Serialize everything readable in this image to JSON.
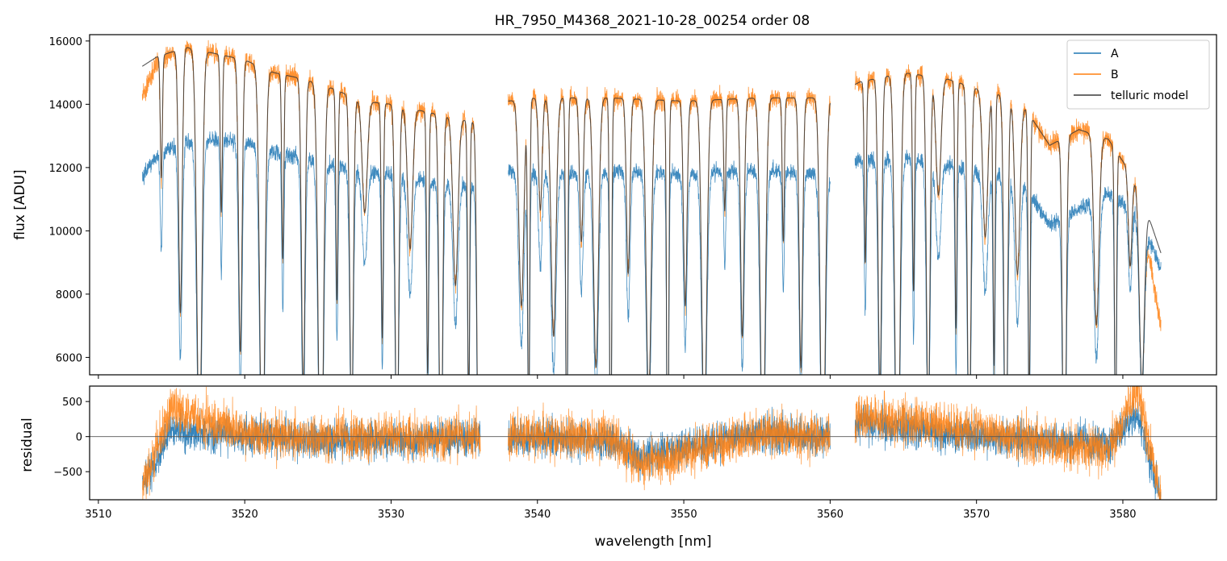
{
  "title": "HR_7950_M4368_2021-10-28_00254  order 08",
  "colors": {
    "A": "#1f77b4",
    "B": "#ff7f0e",
    "model": "#3a3a3a",
    "zero_line": "#555555"
  },
  "legend": {
    "placement": "top-right",
    "entries": [
      "A",
      "B",
      "telluric model"
    ]
  },
  "chart_data": [
    {
      "type": "line",
      "panel": "flux",
      "ylabel": "flux [ADU]",
      "xlim": [
        3509.4,
        3586.4
      ],
      "ylim": [
        5450,
        16200
      ],
      "yticks": [
        6000,
        8000,
        10000,
        12000,
        14000,
        16000
      ],
      "xticks": [
        3510,
        3520,
        3530,
        3540,
        3550,
        3560,
        3570,
        3580
      ],
      "grid": false,
      "series": [
        {
          "name": "A",
          "x": [
            3513.0,
            3514.0,
            3516.0,
            3518.0,
            3520.0,
            3522.0,
            3524.0,
            3526.0,
            3528.0,
            3530.0,
            3532.0,
            3534.0,
            3536.0,
            3538.0,
            3540.0,
            3545.0,
            3550.0,
            3555.0,
            3560.0,
            3562.0,
            3565.0,
            3568.0,
            3570.0,
            3573.0,
            3575.0,
            3577.0,
            3579.0,
            3581.0,
            3582.6
          ],
          "values": [
            11700,
            12400,
            12800,
            12900,
            12800,
            12500,
            12300,
            12100,
            11900,
            11800,
            11600,
            11500,
            11400,
            11900,
            11800,
            11900,
            11800,
            11900,
            11800,
            12200,
            12300,
            12100,
            11900,
            11600,
            10200,
            10700,
            11200,
            10600,
            8800
          ]
        },
        {
          "name": "B",
          "x": [
            3513.0,
            3514.0,
            3516.0,
            3518.0,
            3520.0,
            3522.0,
            3524.0,
            3526.0,
            3528.0,
            3530.0,
            3532.0,
            3534.0,
            3536.0,
            3538.0,
            3540.0,
            3545.0,
            3550.0,
            3555.0,
            3560.0,
            3562.0,
            3565.0,
            3568.0,
            3570.0,
            3573.0,
            3575.0,
            3577.0,
            3579.0,
            3581.0,
            3582.6
          ],
          "values": [
            14200,
            15300,
            15800,
            15600,
            15400,
            15000,
            14800,
            14500,
            14100,
            14000,
            13800,
            13600,
            13400,
            14100,
            14200,
            14200,
            14100,
            14200,
            14200,
            14700,
            15000,
            14800,
            14500,
            14100,
            12700,
            13200,
            12900,
            11500,
            7000
          ]
        },
        {
          "name": "telluric model",
          "x": [
            3513.0,
            3514.0,
            3516.0,
            3518.0,
            3520.0,
            3522.0,
            3524.0,
            3526.0,
            3528.0,
            3530.0,
            3532.0,
            3534.0,
            3536.0,
            3538.0,
            3540.0,
            3545.0,
            3550.0,
            3555.0,
            3560.0,
            3562.0,
            3565.0,
            3568.0,
            3570.0,
            3573.0,
            3575.0,
            3577.0,
            3579.0,
            3581.0,
            3582.6
          ],
          "values": [
            15200,
            15500,
            15800,
            15600,
            15400,
            15000,
            14800,
            14500,
            14100,
            14000,
            13800,
            13600,
            13400,
            14100,
            14200,
            14200,
            14100,
            14200,
            14200,
            14700,
            15000,
            14800,
            14500,
            14100,
            12700,
            13200,
            12900,
            11500,
            9300
          ]
        }
      ]
    },
    {
      "type": "line",
      "panel": "residual",
      "xlabel": "wavelength [nm]",
      "ylabel": "residual",
      "xlim": [
        3509.4,
        3586.4
      ],
      "ylim": [
        -900,
        720
      ],
      "yticks": [
        -500,
        0,
        500
      ],
      "xticks": [
        3510,
        3520,
        3530,
        3540,
        3550,
        3560,
        3570,
        3580
      ],
      "series": [
        {
          "name": "A",
          "x": [
            3513.0,
            3515.0,
            3520.0,
            3525.0,
            3530.0,
            3536.0,
            3538.0,
            3545.0,
            3547.0,
            3555.0,
            3560.0,
            3562.0,
            3570.0,
            3575.0,
            3579.0,
            3581.0,
            3582.6
          ],
          "values": [
            -700,
            100,
            0,
            -50,
            -50,
            0,
            0,
            -50,
            -300,
            50,
            0,
            200,
            0,
            -50,
            -100,
            300,
            -900
          ]
        },
        {
          "name": "B",
          "x": [
            3513.0,
            3515.0,
            3520.0,
            3525.0,
            3530.0,
            3536.0,
            3538.0,
            3545.0,
            3547.0,
            3555.0,
            3560.0,
            3562.0,
            3570.0,
            3575.0,
            3579.0,
            3581.0,
            3582.6
          ],
          "values": [
            -700,
            400,
            50,
            0,
            0,
            0,
            0,
            0,
            -400,
            50,
            0,
            300,
            100,
            -100,
            -200,
            700,
            -900
          ]
        }
      ]
    }
  ]
}
